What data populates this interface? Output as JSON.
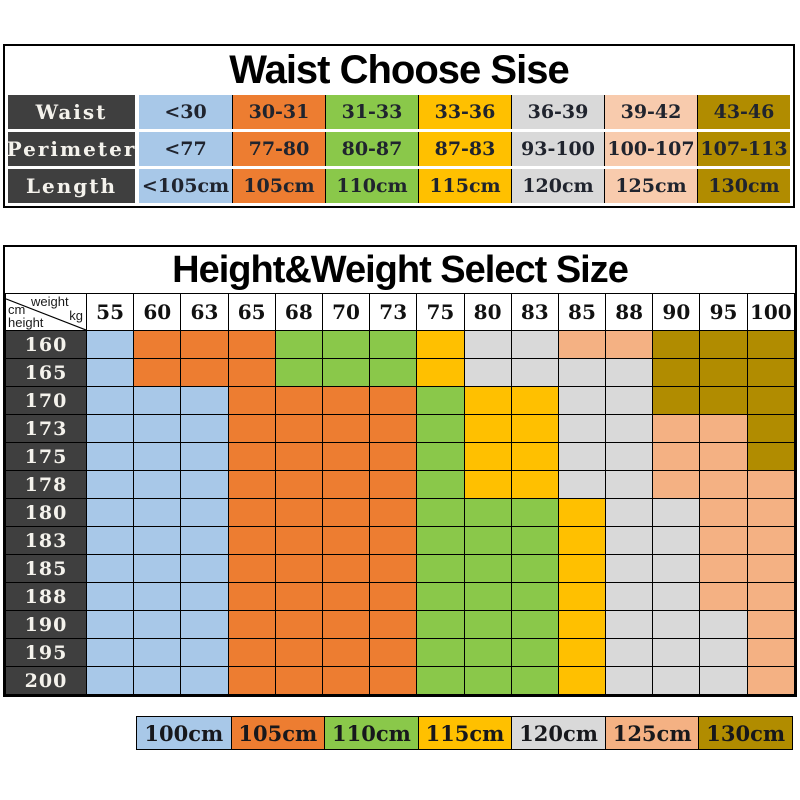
{
  "colors": {
    "blue": "#A8C8E8",
    "orange": "#ED7D31",
    "green": "#8AC84A",
    "yellow": "#FFC000",
    "gray": "#D9D9D9",
    "peach": "#F4B183",
    "peach_light": "#F8CBAD",
    "gold": "#B18C00",
    "header_dark": "#3F3F3F"
  },
  "chart_data": [
    {
      "id": "waist_table",
      "type": "table",
      "title": "Waist Choose Sise",
      "rows": [
        {
          "label": "Waist",
          "values": [
            "<30",
            "30-31",
            "31-33",
            "33-36",
            "36-39",
            "39-42",
            "43-46"
          ]
        },
        {
          "label": "Perimeter",
          "values": [
            "<77",
            "77-80",
            "80-87",
            "87-83",
            "93-100",
            "100-107",
            "107-113"
          ]
        },
        {
          "label": "Length",
          "values": [
            "<105cm",
            "105cm",
            "110cm",
            "115cm",
            "120cm",
            "125cm",
            "130cm"
          ]
        }
      ],
      "column_colors": [
        "blue",
        "orange",
        "green",
        "yellow",
        "gray",
        "peach_light",
        "gold"
      ]
    },
    {
      "id": "size_matrix",
      "type": "heatmap",
      "title": "Height&Weight Select Size",
      "corner": {
        "weight_label": "weight",
        "weight_unit": "kg",
        "height_unit": "cm",
        "height_label": "height"
      },
      "weights": [
        "55",
        "60",
        "63",
        "65",
        "68",
        "70",
        "73",
        "75",
        "80",
        "83",
        "85",
        "88",
        "90",
        "95",
        "100"
      ],
      "rows": [
        {
          "height": "160",
          "cells": [
            "blue",
            "orange",
            "orange",
            "orange",
            "green",
            "green",
            "green",
            "yellow",
            "gray",
            "gray",
            "peach",
            "peach",
            "gold",
            "gold",
            "gold"
          ]
        },
        {
          "height": "165",
          "cells": [
            "blue",
            "orange",
            "orange",
            "orange",
            "green",
            "green",
            "green",
            "yellow",
            "gray",
            "gray",
            "gray",
            "gray",
            "gold",
            "gold",
            "gold"
          ]
        },
        {
          "height": "170",
          "cells": [
            "blue",
            "blue",
            "blue",
            "orange",
            "orange",
            "orange",
            "orange",
            "green",
            "yellow",
            "yellow",
            "gray",
            "gray",
            "gold",
            "gold",
            "gold"
          ]
        },
        {
          "height": "173",
          "cells": [
            "blue",
            "blue",
            "blue",
            "orange",
            "orange",
            "orange",
            "orange",
            "green",
            "yellow",
            "yellow",
            "gray",
            "gray",
            "peach",
            "peach",
            "gold"
          ]
        },
        {
          "height": "175",
          "cells": [
            "blue",
            "blue",
            "blue",
            "orange",
            "orange",
            "orange",
            "orange",
            "green",
            "yellow",
            "yellow",
            "gray",
            "gray",
            "peach",
            "peach",
            "gold"
          ]
        },
        {
          "height": "178",
          "cells": [
            "blue",
            "blue",
            "blue",
            "orange",
            "orange",
            "orange",
            "orange",
            "green",
            "yellow",
            "yellow",
            "gray",
            "gray",
            "peach",
            "peach",
            "peach"
          ]
        },
        {
          "height": "180",
          "cells": [
            "blue",
            "blue",
            "blue",
            "orange",
            "orange",
            "orange",
            "orange",
            "green",
            "green",
            "green",
            "yellow",
            "gray",
            "gray",
            "peach",
            "peach"
          ]
        },
        {
          "height": "183",
          "cells": [
            "blue",
            "blue",
            "blue",
            "orange",
            "orange",
            "orange",
            "orange",
            "green",
            "green",
            "green",
            "yellow",
            "gray",
            "gray",
            "peach",
            "peach"
          ]
        },
        {
          "height": "185",
          "cells": [
            "blue",
            "blue",
            "blue",
            "orange",
            "orange",
            "orange",
            "orange",
            "green",
            "green",
            "green",
            "yellow",
            "gray",
            "gray",
            "peach",
            "peach"
          ]
        },
        {
          "height": "188",
          "cells": [
            "blue",
            "blue",
            "blue",
            "orange",
            "orange",
            "orange",
            "orange",
            "green",
            "green",
            "green",
            "yellow",
            "gray",
            "gray",
            "peach",
            "peach"
          ]
        },
        {
          "height": "190",
          "cells": [
            "blue",
            "blue",
            "blue",
            "orange",
            "orange",
            "orange",
            "orange",
            "green",
            "green",
            "green",
            "yellow",
            "gray",
            "gray",
            "gray",
            "peach"
          ]
        },
        {
          "height": "195",
          "cells": [
            "blue",
            "blue",
            "blue",
            "orange",
            "orange",
            "orange",
            "orange",
            "green",
            "green",
            "green",
            "yellow",
            "gray",
            "gray",
            "gray",
            "peach"
          ]
        },
        {
          "height": "200",
          "cells": [
            "blue",
            "blue",
            "blue",
            "orange",
            "orange",
            "orange",
            "orange",
            "green",
            "green",
            "green",
            "yellow",
            "gray",
            "gray",
            "gray",
            "peach"
          ]
        }
      ],
      "legend": [
        {
          "label": "100cm",
          "color": "blue"
        },
        {
          "label": "105cm",
          "color": "orange"
        },
        {
          "label": "110cm",
          "color": "green"
        },
        {
          "label": "115cm",
          "color": "yellow"
        },
        {
          "label": "120cm",
          "color": "gray"
        },
        {
          "label": "125cm",
          "color": "peach"
        },
        {
          "label": "130cm",
          "color": "gold"
        }
      ]
    }
  ]
}
